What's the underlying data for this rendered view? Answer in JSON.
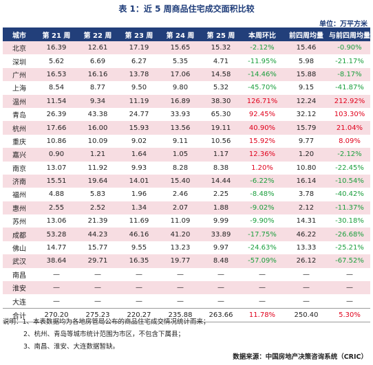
{
  "title": "表 1：近 5 周商品住宅成交面积比较",
  "unit": "单位：万平方米",
  "headers": [
    "城市",
    "第 21 周",
    "第 22 周",
    "第 23 周",
    "第 24 周",
    "第 25 周",
    "本周环比",
    "前四周均量",
    "与前四周均量比"
  ],
  "rows": [
    {
      "c": [
        "北京",
        "16.39",
        "12.61",
        "17.19",
        "15.65",
        "15.32",
        "-2.12%",
        "15.46",
        "-0.90%"
      ],
      "s1": "neg",
      "s2": "neg"
    },
    {
      "c": [
        "深圳",
        "5.62",
        "6.69",
        "6.27",
        "5.35",
        "4.71",
        "-11.95%",
        "5.98",
        "-21.17%"
      ],
      "s1": "neg",
      "s2": "neg"
    },
    {
      "c": [
        "广州",
        "16.53",
        "16.16",
        "13.78",
        "17.06",
        "14.58",
        "-14.46%",
        "15.88",
        "-8.17%"
      ],
      "s1": "neg",
      "s2": "neg"
    },
    {
      "c": [
        "上海",
        "8.54",
        "8.77",
        "9.50",
        "9.80",
        "5.32",
        "-45.70%",
        "9.15",
        "-41.87%"
      ],
      "s1": "neg",
      "s2": "neg"
    },
    {
      "c": [
        "温州",
        "11.54",
        "9.34",
        "11.19",
        "16.89",
        "38.30",
        "126.71%",
        "12.24",
        "212.92%"
      ],
      "s1": "pos",
      "s2": "pos"
    },
    {
      "c": [
        "青岛",
        "26.39",
        "43.38",
        "24.77",
        "33.93",
        "65.30",
        "92.45%",
        "32.12",
        "103.30%"
      ],
      "s1": "pos",
      "s2": "pos"
    },
    {
      "c": [
        "杭州",
        "17.66",
        "16.00",
        "15.93",
        "13.56",
        "19.11",
        "40.90%",
        "15.79",
        "21.04%"
      ],
      "s1": "pos",
      "s2": "pos"
    },
    {
      "c": [
        "重庆",
        "10.86",
        "10.09",
        "9.02",
        "9.11",
        "10.56",
        "15.92%",
        "9.77",
        "8.09%"
      ],
      "s1": "pos",
      "s2": "pos"
    },
    {
      "c": [
        "嘉兴",
        "0.90",
        "1.21",
        "1.64",
        "1.05",
        "1.17",
        "12.36%",
        "1.20",
        "-2.12%"
      ],
      "s1": "pos",
      "s2": "neg"
    },
    {
      "c": [
        "南京",
        "13.07",
        "11.92",
        "9.93",
        "8.28",
        "8.38",
        "1.20%",
        "10.80",
        "-22.45%"
      ],
      "s1": "pos",
      "s2": "neg"
    },
    {
      "c": [
        "济南",
        "15.51",
        "19.64",
        "14.01",
        "15.40",
        "14.44",
        "-6.22%",
        "16.14",
        "-10.54%"
      ],
      "s1": "neg",
      "s2": "neg"
    },
    {
      "c": [
        "福州",
        "4.88",
        "5.83",
        "1.96",
        "2.46",
        "2.25",
        "-8.48%",
        "3.78",
        "-40.42%"
      ],
      "s1": "neg",
      "s2": "neg"
    },
    {
      "c": [
        "惠州",
        "2.55",
        "2.52",
        "1.34",
        "2.07",
        "1.88",
        "-9.02%",
        "2.12",
        "-11.37%"
      ],
      "s1": "neg",
      "s2": "neg"
    },
    {
      "c": [
        "苏州",
        "13.06",
        "21.39",
        "11.69",
        "11.09",
        "9.99",
        "-9.90%",
        "14.31",
        "-30.18%"
      ],
      "s1": "neg",
      "s2": "neg"
    },
    {
      "c": [
        "成都",
        "53.28",
        "44.23",
        "46.16",
        "41.20",
        "33.89",
        "-17.75%",
        "46.22",
        "-26.68%"
      ],
      "s1": "neg",
      "s2": "neg"
    },
    {
      "c": [
        "佛山",
        "14.77",
        "15.77",
        "9.55",
        "13.23",
        "9.97",
        "-24.63%",
        "13.33",
        "-25.21%"
      ],
      "s1": "neg",
      "s2": "neg"
    },
    {
      "c": [
        "武汉",
        "38.64",
        "29.71",
        "16.35",
        "19.77",
        "8.48",
        "-57.09%",
        "26.12",
        "-67.52%"
      ],
      "s1": "neg",
      "s2": "neg"
    },
    {
      "c": [
        "南昌",
        "—",
        "—",
        "—",
        "—",
        "—",
        "—",
        "—",
        "—"
      ],
      "s1": "",
      "s2": ""
    },
    {
      "c": [
        "淮安",
        "—",
        "—",
        "—",
        "—",
        "—",
        "—",
        "—",
        "—"
      ],
      "s1": "",
      "s2": ""
    },
    {
      "c": [
        "大连",
        "—",
        "—",
        "—",
        "—",
        "—",
        "—",
        "—",
        "—"
      ],
      "s1": "",
      "s2": ""
    },
    {
      "c": [
        "合计",
        "270.20",
        "275.23",
        "220.27",
        "235.88",
        "263.66",
        "11.78%",
        "250.40",
        "5.30%"
      ],
      "s1": "pos",
      "s2": "pos"
    }
  ],
  "notes": {
    "n1": "说明：1、本表数据均为各地房管局公布的商品住宅成交情况统计而来；",
    "n2": "2、杭州、青岛等城市统计范围为市区，不包含下属县；",
    "n3": "3、南昌、淮安、大连数据暂缺。"
  },
  "source": "数据来源：中国房地产决策咨询系统（CRIC）",
  "colors": {
    "header_bg": "#223f7a",
    "row_alt": "#f7dde2",
    "positive": "#e0001b",
    "negative": "#1a9e3c"
  }
}
